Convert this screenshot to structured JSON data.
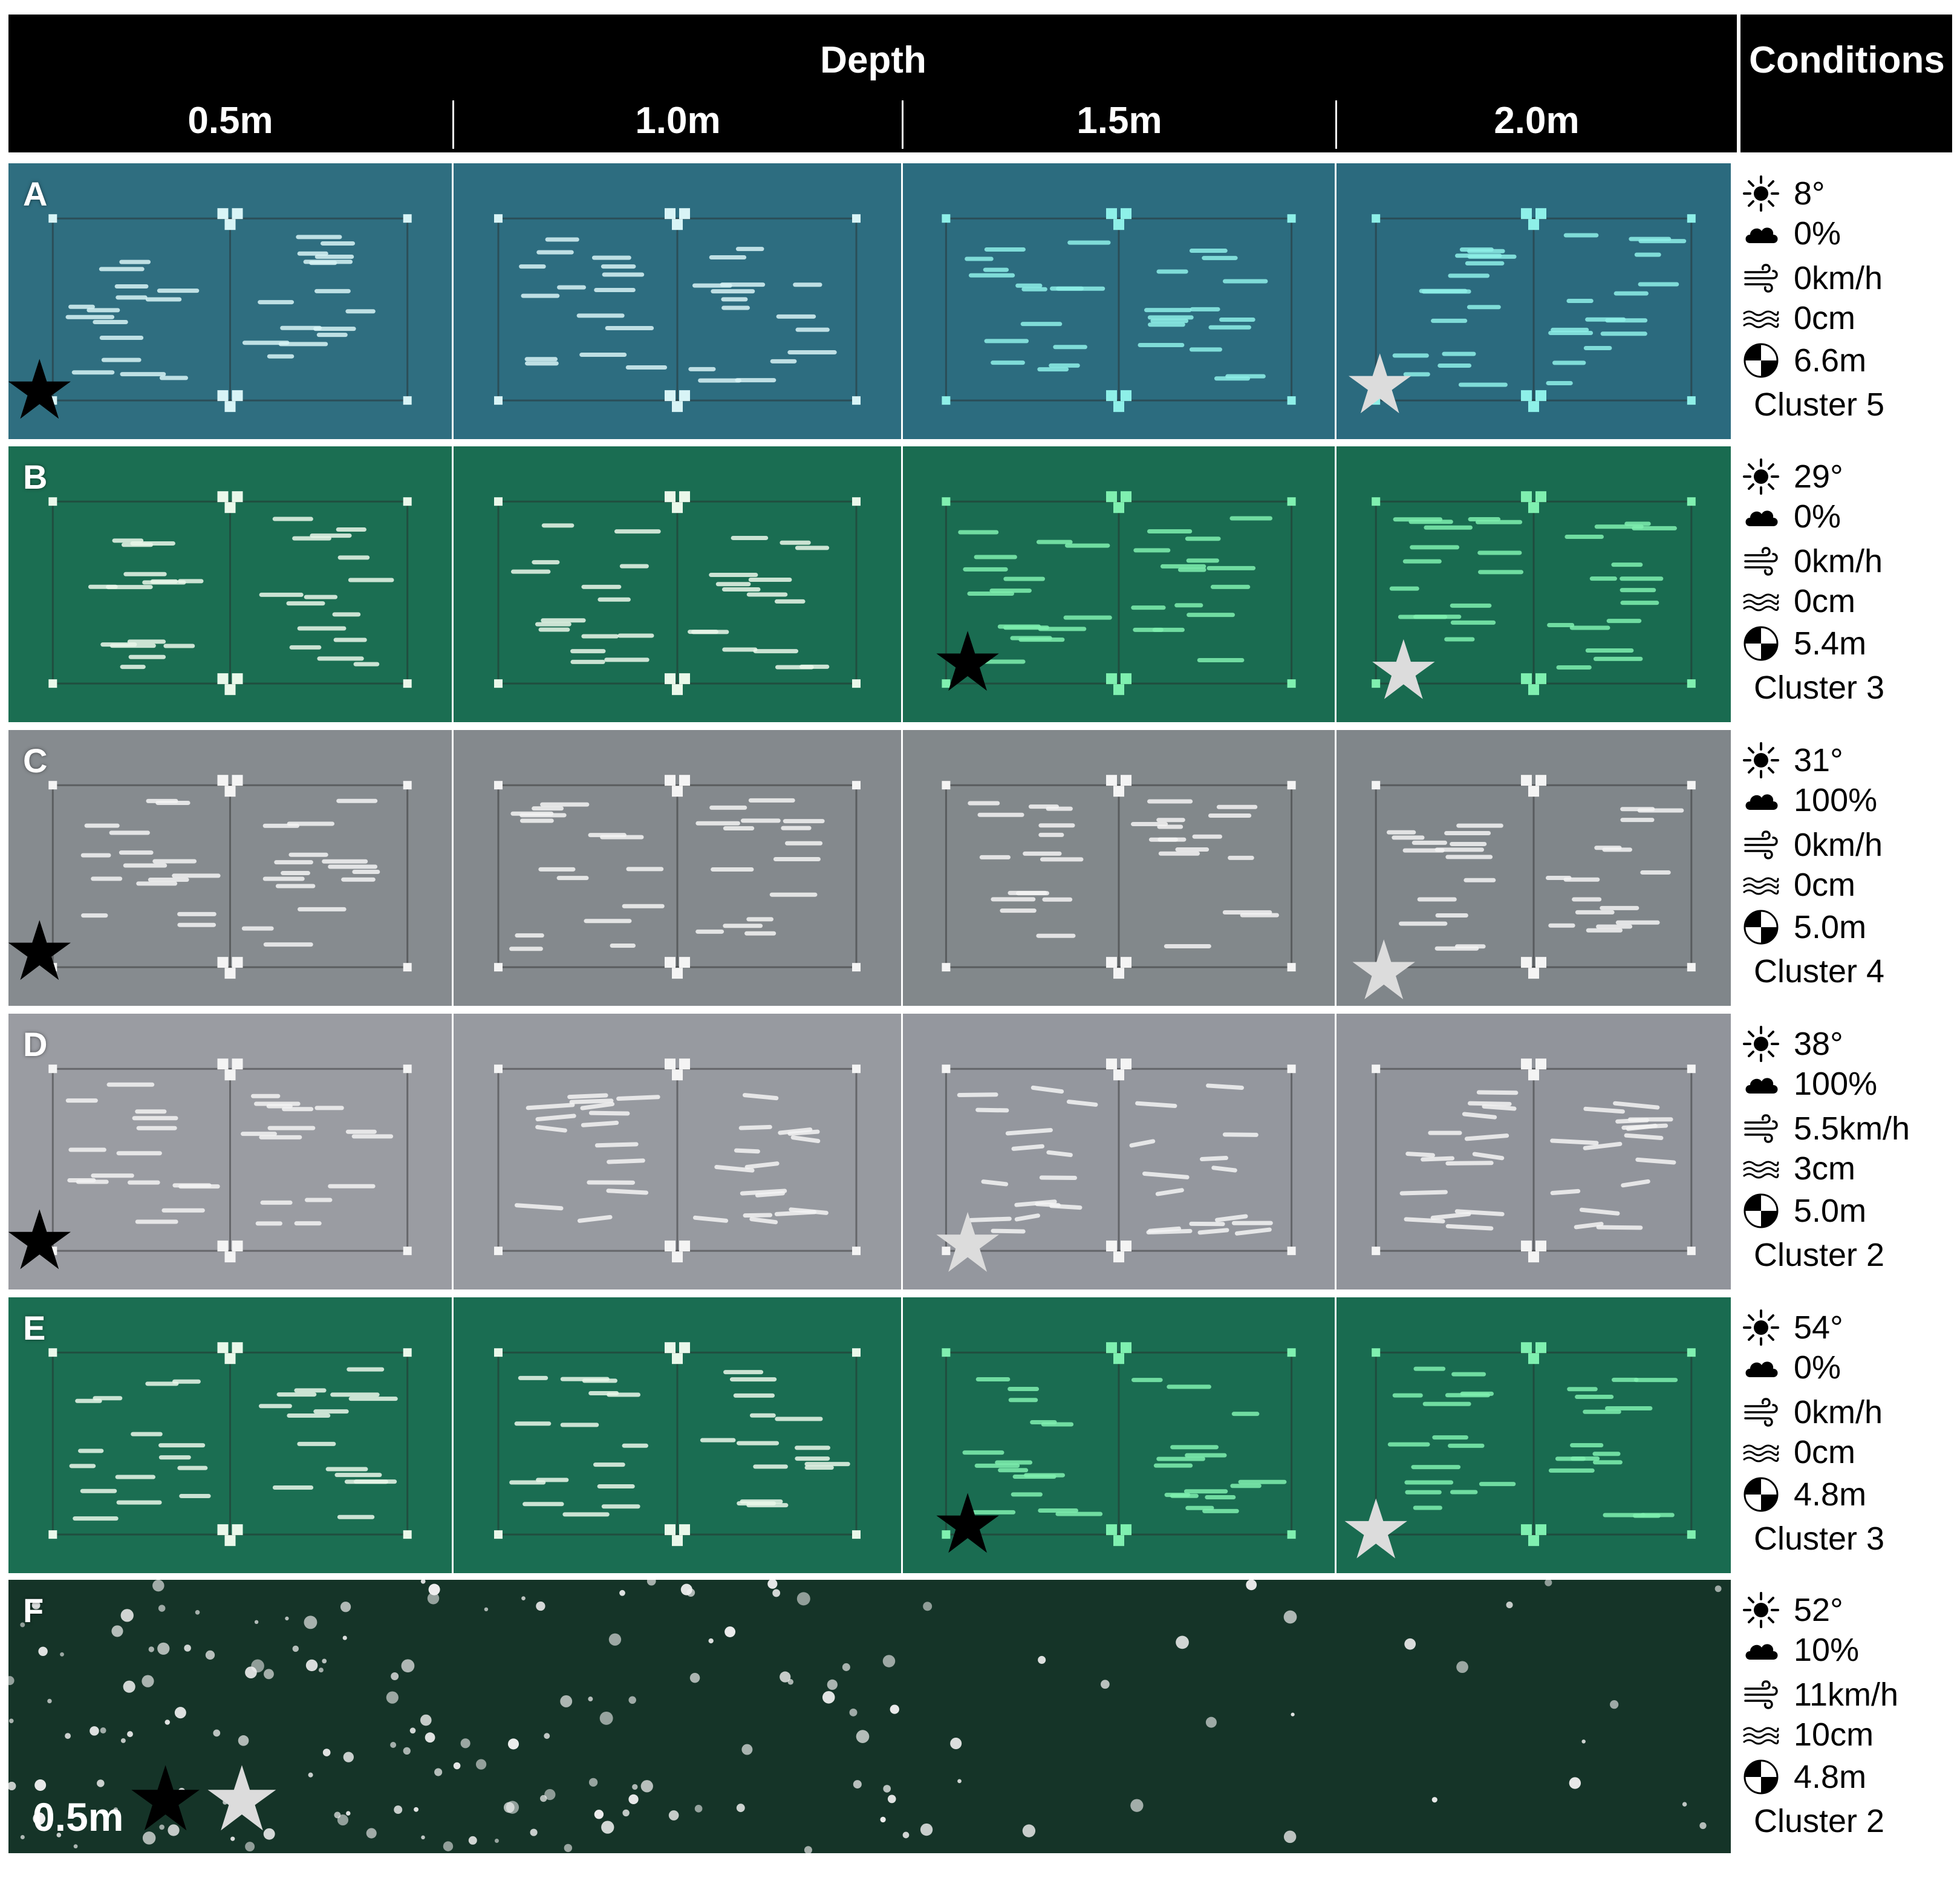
{
  "header": {
    "depth_title": "Depth",
    "conditions_title": "Conditions",
    "columns": [
      "0.5m",
      "1.0m",
      "1.5m",
      "2.0m"
    ]
  },
  "colors": {
    "teal_blue": "#2f6e80",
    "green": "#1b6e52",
    "gray": "#878c8f",
    "light_gray": "#9a9ca2",
    "dark_green": "#153428"
  },
  "rows": [
    {
      "letter": "A",
      "temp": "8°",
      "cloud": "0%",
      "wind": "0km/h",
      "wave": "0cm",
      "secchi": "6.6m",
      "cluster": "Cluster 5"
    },
    {
      "letter": "B",
      "temp": "29°",
      "cloud": "0%",
      "wind": "0km/h",
      "wave": "0cm",
      "secchi": "5.4m",
      "cluster": "Cluster 3"
    },
    {
      "letter": "C",
      "temp": "31°",
      "cloud": "100%",
      "wind": "0km/h",
      "wave": "0cm",
      "secchi": "5.0m",
      "cluster": "Cluster 4"
    },
    {
      "letter": "D",
      "temp": "38°",
      "cloud": "100%",
      "wind": "5.5km/h",
      "wave": "3cm",
      "secchi": "5.0m",
      "cluster": "Cluster 2"
    },
    {
      "letter": "E",
      "temp": "54°",
      "cloud": "0%",
      "wind": "0km/h",
      "wave": "0cm",
      "secchi": "4.8m",
      "cluster": "Cluster 3"
    },
    {
      "letter": "F",
      "temp": "52°",
      "cloud": "10%",
      "wind": "11km/h",
      "wave": "10cm",
      "secchi": "4.8m",
      "cluster": "Cluster 2"
    }
  ],
  "row_f_depth_label": "0.5m",
  "icons": [
    "sun-icon",
    "cloud-icon",
    "wind-icon",
    "wave-icon",
    "secchi-disk-icon",
    "star-icon"
  ]
}
